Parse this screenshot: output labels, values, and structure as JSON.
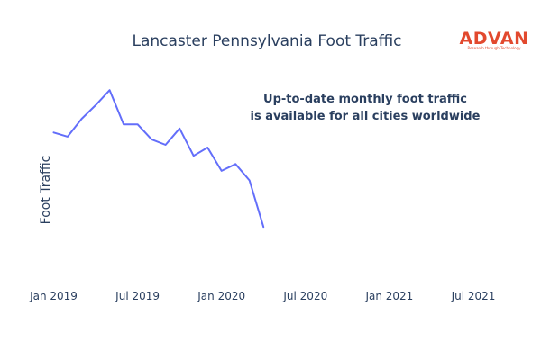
{
  "colors": {
    "line": "#636efa",
    "text": "#2a3f5f",
    "logo": "#e2492e"
  },
  "logo": {
    "name": "ADVAN",
    "tagline": "Research through Technology"
  },
  "annotation": {
    "lines": [
      "Up-to-date monthly foot traffic",
      "is available for all cities worldwide"
    ]
  },
  "chart_data": {
    "type": "line",
    "title": "Lancaster Pennsylvania Foot Traffic",
    "xlabel": "",
    "ylabel": "Foot Traffic",
    "x": [
      "2019-01",
      "2019-02",
      "2019-03",
      "2019-04",
      "2019-05",
      "2019-06",
      "2019-07",
      "2019-08",
      "2019-09",
      "2019-10",
      "2019-11",
      "2019-12",
      "2020-01",
      "2020-02",
      "2020-03",
      "2020-04"
    ],
    "series": [
      {
        "values": [
          69,
          66,
          79,
          89,
          100,
          75,
          75,
          64,
          60,
          72,
          52,
          58,
          41,
          46,
          34,
          0
        ]
      }
    ],
    "xlim": [
      "2018-12",
      "2021-09"
    ],
    "ylim": [
      -40,
      110
    ],
    "x_ticks": [
      "Jan 2019",
      "Jul 2019",
      "Jan 2020",
      "Jul 2020",
      "Jan 2021",
      "Jul 2021"
    ],
    "x_tick_dates": [
      "2019-01",
      "2019-07",
      "2020-01",
      "2020-07",
      "2021-01",
      "2021-07"
    ],
    "y_ticks_visible": false,
    "grid": false,
    "legend": "none"
  }
}
